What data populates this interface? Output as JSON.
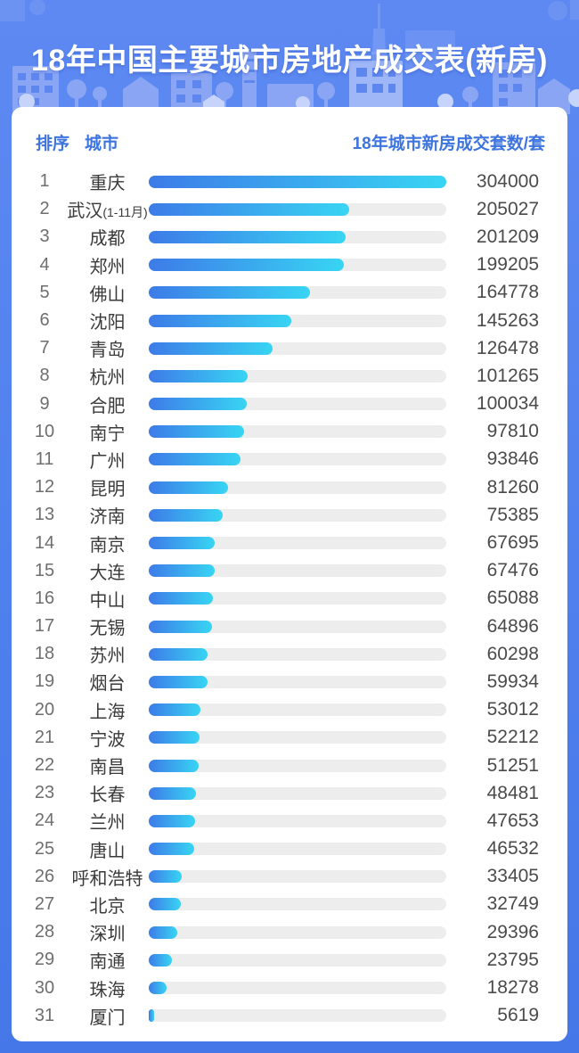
{
  "title": "18年中国主要城市房地产成交表(新房)",
  "table": {
    "col_rank": "排序",
    "col_city": "城市",
    "col_value": "18年城市新房成交套数/套"
  },
  "colors": {
    "accent": "#3D74DE",
    "track": "#EDEDED",
    "bar_start": "#3D7BE8",
    "bar_end": "#38D5F3",
    "background": "#5282EE",
    "pattern": "#8AA5F4",
    "value_text": "#4B4B4B"
  },
  "chart_data": {
    "type": "bar",
    "orientation": "horizontal",
    "title": "18年中国主要城市房地产成交表(新房)",
    "xlabel": "18年城市新房成交套数/套",
    "ylabel": "城市",
    "max_value": 304000,
    "xlim": [
      0,
      304000
    ],
    "grid": false,
    "legend": "none",
    "rows": [
      {
        "rank": 1,
        "city": "重庆",
        "note": "",
        "value": 304000
      },
      {
        "rank": 2,
        "city": "武汉",
        "note": "(1-11月)",
        "value": 205027
      },
      {
        "rank": 3,
        "city": "成都",
        "note": "",
        "value": 201209
      },
      {
        "rank": 4,
        "city": "郑州",
        "note": "",
        "value": 199205
      },
      {
        "rank": 5,
        "city": "佛山",
        "note": "",
        "value": 164778
      },
      {
        "rank": 6,
        "city": "沈阳",
        "note": "",
        "value": 145263
      },
      {
        "rank": 7,
        "city": "青岛",
        "note": "",
        "value": 126478
      },
      {
        "rank": 8,
        "city": "杭州",
        "note": "",
        "value": 101265
      },
      {
        "rank": 9,
        "city": "合肥",
        "note": "",
        "value": 100034
      },
      {
        "rank": 10,
        "city": "南宁",
        "note": "",
        "value": 97810
      },
      {
        "rank": 11,
        "city": "广州",
        "note": "",
        "value": 93846
      },
      {
        "rank": 12,
        "city": "昆明",
        "note": "",
        "value": 81260
      },
      {
        "rank": 13,
        "city": "济南",
        "note": "",
        "value": 75385
      },
      {
        "rank": 14,
        "city": "南京",
        "note": "",
        "value": 67695
      },
      {
        "rank": 15,
        "city": "大连",
        "note": "",
        "value": 67476
      },
      {
        "rank": 16,
        "city": "中山",
        "note": "",
        "value": 65088
      },
      {
        "rank": 17,
        "city": "无锡",
        "note": "",
        "value": 64896
      },
      {
        "rank": 18,
        "city": "苏州",
        "note": "",
        "value": 60298
      },
      {
        "rank": 19,
        "city": "烟台",
        "note": "",
        "value": 59934
      },
      {
        "rank": 20,
        "city": "上海",
        "note": "",
        "value": 53012
      },
      {
        "rank": 21,
        "city": "宁波",
        "note": "",
        "value": 52212
      },
      {
        "rank": 22,
        "city": "南昌",
        "note": "",
        "value": 51251
      },
      {
        "rank": 23,
        "city": "长春",
        "note": "",
        "value": 48481
      },
      {
        "rank": 24,
        "city": "兰州",
        "note": "",
        "value": 47653
      },
      {
        "rank": 25,
        "city": "唐山",
        "note": "",
        "value": 46532
      },
      {
        "rank": 26,
        "city": "呼和浩特",
        "note": "",
        "value": 33405
      },
      {
        "rank": 27,
        "city": "北京",
        "note": "",
        "value": 32749
      },
      {
        "rank": 28,
        "city": "深圳",
        "note": "",
        "value": 29396
      },
      {
        "rank": 29,
        "city": "南通",
        "note": "",
        "value": 23795
      },
      {
        "rank": 30,
        "city": "珠海",
        "note": "",
        "value": 18278
      },
      {
        "rank": 31,
        "city": "厦门",
        "note": "",
        "value": 5619
      }
    ]
  }
}
